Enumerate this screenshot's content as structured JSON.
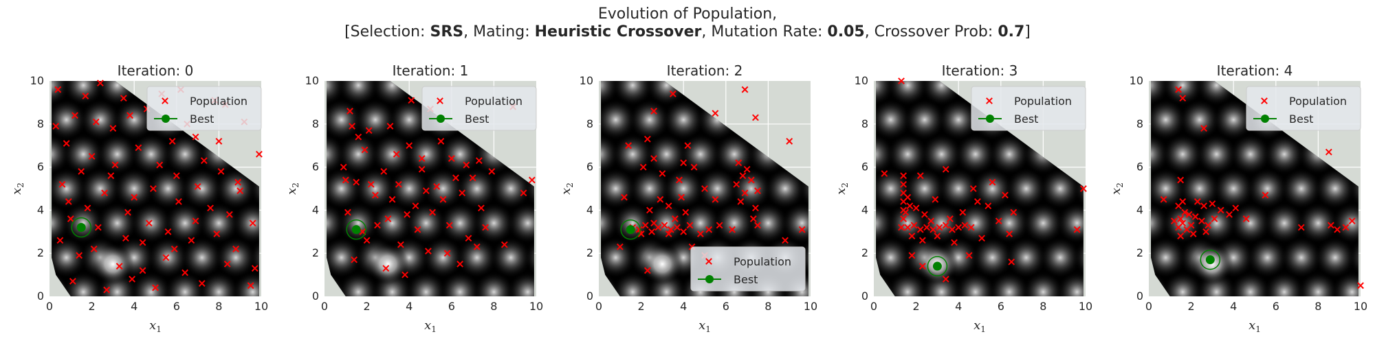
{
  "figure": {
    "title_line1": "Evolution of Population,",
    "title_line2_parts": [
      {
        "text": "[Selection: ",
        "bold": false
      },
      {
        "text": "SRS",
        "bold": true
      },
      {
        "text": ", Mating: ",
        "bold": false
      },
      {
        "text": "Heuristic Crossover",
        "bold": true
      },
      {
        "text": ", Mutation Rate: ",
        "bold": false
      },
      {
        "text": "0.05",
        "bold": true
      },
      {
        "text": ", Crossover Prob: ",
        "bold": false
      },
      {
        "text": "0.7",
        "bold": true
      },
      {
        "text": "]",
        "bold": false
      }
    ]
  },
  "colors": {
    "population": "#ff0000",
    "best": "#008000",
    "outside_region": "#d5dad4",
    "landscape_bg": "#000000"
  },
  "chart_data": [
    {
      "type": "scatter",
      "title": "Iteration:  0",
      "xlabel": "x",
      "xlabel_sub": "1",
      "ylabel": "x",
      "ylabel_sub": "2",
      "xlim": [
        0,
        10
      ],
      "ylim": [
        0,
        10
      ],
      "xticks": [
        "0",
        "2",
        "4",
        "6",
        "8",
        "10"
      ],
      "yticks": [
        "0",
        "2",
        "4",
        "6",
        "8",
        "10"
      ],
      "legend": {
        "position": "upper-center-right",
        "entries": [
          "Population",
          "Best"
        ]
      },
      "population": [
        [
          0.4,
          9.6
        ],
        [
          1.2,
          8.4
        ],
        [
          2.4,
          9.9
        ],
        [
          3.5,
          9.2
        ],
        [
          4.6,
          8.7
        ],
        [
          5.3,
          9.4
        ],
        [
          0.8,
          7.1
        ],
        [
          2.0,
          6.5
        ],
        [
          3.0,
          7.8
        ],
        [
          4.2,
          6.9
        ],
        [
          5.8,
          7.2
        ],
        [
          6.5,
          8.0
        ],
        [
          7.3,
          6.3
        ],
        [
          8.1,
          5.8
        ],
        [
          9.0,
          4.9
        ],
        [
          9.6,
          3.4
        ],
        [
          0.6,
          5.2
        ],
        [
          1.8,
          4.1
        ],
        [
          2.9,
          5.6
        ],
        [
          3.7,
          3.9
        ],
        [
          4.9,
          5.0
        ],
        [
          6.1,
          4.4
        ],
        [
          6.9,
          3.5
        ],
        [
          7.9,
          2.9
        ],
        [
          8.8,
          2.2
        ],
        [
          9.7,
          1.3
        ],
        [
          0.5,
          2.6
        ],
        [
          1.4,
          1.9
        ],
        [
          2.3,
          3.2
        ],
        [
          3.3,
          1.4
        ],
        [
          4.4,
          2.5
        ],
        [
          5.5,
          1.8
        ],
        [
          6.4,
          1.1
        ],
        [
          7.2,
          0.6
        ],
        [
          8.4,
          1.5
        ],
        [
          9.5,
          0.5
        ],
        [
          1.1,
          0.7
        ],
        [
          2.7,
          0.3
        ],
        [
          3.9,
          0.8
        ],
        [
          5.0,
          0.4
        ],
        [
          6.7,
          2.6
        ],
        [
          7.6,
          4.1
        ],
        [
          8.5,
          3.8
        ],
        [
          5.2,
          6.1
        ],
        [
          4.0,
          4.6
        ],
        [
          2.1,
          2.2
        ],
        [
          3.1,
          6.1
        ],
        [
          1.5,
          5.8
        ],
        [
          0.3,
          7.9
        ],
        [
          6.0,
          5.6
        ],
        [
          7.0,
          5.1
        ],
        [
          5.6,
          3.0
        ],
        [
          4.7,
          3.4
        ],
        [
          3.6,
          2.7
        ],
        [
          2.6,
          4.8
        ],
        [
          1.0,
          3.6
        ],
        [
          8.9,
          5.3
        ],
        [
          9.2,
          8.1
        ],
        [
          9.9,
          6.6
        ],
        [
          8.3,
          8.9
        ],
        [
          6.2,
          9.6
        ],
        [
          7.8,
          9.1
        ],
        [
          2.2,
          8.1
        ],
        [
          3.8,
          8.4
        ],
        [
          4.4,
          1.2
        ],
        [
          6.9,
          7.4
        ],
        [
          5.9,
          2.2
        ],
        [
          8.0,
          7.2
        ],
        [
          1.7,
          9.3
        ],
        [
          0.9,
          4.4
        ]
      ],
      "best": [
        1.5,
        3.2
      ]
    },
    {
      "type": "scatter",
      "title": "Iteration:  1",
      "xlabel": "x",
      "xlabel_sub": "1",
      "ylabel": "x",
      "ylabel_sub": "2",
      "xlim": [
        0,
        10
      ],
      "ylim": [
        0,
        10
      ],
      "xticks": [
        "0",
        "2",
        "4",
        "6",
        "8",
        "10"
      ],
      "yticks": [
        "0",
        "2",
        "4",
        "6",
        "8",
        "10"
      ],
      "legend": {
        "position": "upper-center-right",
        "entries": [
          "Population",
          "Best"
        ]
      },
      "population": [
        [
          1.3,
          7.9
        ],
        [
          1.6,
          7.4
        ],
        [
          1.9,
          6.8
        ],
        [
          1.2,
          8.6
        ],
        [
          2.1,
          7.7
        ],
        [
          0.9,
          6.0
        ],
        [
          1.5,
          5.3
        ],
        [
          2.8,
          5.8
        ],
        [
          3.4,
          6.6
        ],
        [
          4.0,
          7.0
        ],
        [
          4.6,
          5.9
        ],
        [
          3.2,
          4.5
        ],
        [
          3.9,
          3.8
        ],
        [
          4.4,
          3.1
        ],
        [
          5.1,
          3.9
        ],
        [
          5.6,
          4.5
        ],
        [
          6.2,
          5.5
        ],
        [
          6.7,
          6.1
        ],
        [
          7.3,
          6.3
        ],
        [
          7.9,
          5.8
        ],
        [
          6.5,
          4.8
        ],
        [
          5.9,
          3.3
        ],
        [
          6.8,
          2.7
        ],
        [
          7.4,
          4.1
        ],
        [
          4.9,
          2.1
        ],
        [
          3.6,
          2.4
        ],
        [
          2.5,
          3.3
        ],
        [
          2.0,
          2.6
        ],
        [
          1.4,
          1.7
        ],
        [
          2.9,
          1.3
        ],
        [
          3.8,
          1.0
        ],
        [
          4.3,
          4.2
        ],
        [
          5.3,
          5.1
        ],
        [
          6.0,
          6.4
        ],
        [
          7.0,
          5.5
        ],
        [
          7.6,
          3.2
        ],
        [
          8.5,
          2.4
        ],
        [
          9.8,
          5.4
        ],
        [
          9.4,
          4.8
        ],
        [
          4.1,
          9.1
        ],
        [
          5.0,
          8.7
        ],
        [
          5.5,
          7.2
        ],
        [
          8.9,
          8.8
        ],
        [
          3.0,
          3.6
        ],
        [
          2.4,
          4.7
        ],
        [
          1.1,
          3.9
        ],
        [
          1.8,
          3.0
        ],
        [
          2.2,
          5.2
        ],
        [
          3.5,
          5.2
        ],
        [
          4.8,
          4.9
        ],
        [
          5.8,
          2.0
        ],
        [
          6.4,
          1.5
        ],
        [
          7.2,
          2.3
        ],
        [
          4.6,
          6.4
        ],
        [
          3.1,
          7.9
        ],
        [
          1.0,
          5.4
        ]
      ],
      "best": [
        1.5,
        3.1
      ]
    },
    {
      "type": "scatter",
      "title": "Iteration:  2",
      "xlabel": "x",
      "xlabel_sub": "1",
      "ylabel": "x",
      "ylabel_sub": "2",
      "xlim": [
        0,
        10
      ],
      "ylim": [
        0,
        10
      ],
      "xticks": [
        "0",
        "2",
        "4",
        "6",
        "8",
        "10"
      ],
      "yticks": [
        "0",
        "2",
        "4",
        "6",
        "8",
        "10"
      ],
      "legend": {
        "position": "lower-right",
        "entries": [
          "Population",
          "Best"
        ]
      },
      "population": [
        [
          1.6,
          3.2
        ],
        [
          1.9,
          3.1
        ],
        [
          2.2,
          3.3
        ],
        [
          2.5,
          3.0
        ],
        [
          2.8,
          3.2
        ],
        [
          3.1,
          3.3
        ],
        [
          3.4,
          3.1
        ],
        [
          3.7,
          3.2
        ],
        [
          4.0,
          3.0
        ],
        [
          4.3,
          3.3
        ],
        [
          2.0,
          2.9
        ],
        [
          2.6,
          3.4
        ],
        [
          3.3,
          2.9
        ],
        [
          3.6,
          3.6
        ],
        [
          4.1,
          3.9
        ],
        [
          3.9,
          4.6
        ],
        [
          3.8,
          5.4
        ],
        [
          4.0,
          6.2
        ],
        [
          4.2,
          7.0
        ],
        [
          3.3,
          4.2
        ],
        [
          2.9,
          4.5
        ],
        [
          2.4,
          4.0
        ],
        [
          6.5,
          5.2
        ],
        [
          6.8,
          5.6
        ],
        [
          7.0,
          5.9
        ],
        [
          6.6,
          6.2
        ],
        [
          7.2,
          5.4
        ],
        [
          6.9,
          4.8
        ],
        [
          6.7,
          4.4
        ],
        [
          7.4,
          4.1
        ],
        [
          7.3,
          3.6
        ],
        [
          6.3,
          3.1
        ],
        [
          5.7,
          3.3
        ],
        [
          5.2,
          3.1
        ],
        [
          4.8,
          2.9
        ],
        [
          5.5,
          4.5
        ],
        [
          5.0,
          5.0
        ],
        [
          4.5,
          6.0
        ],
        [
          3.0,
          5.7
        ],
        [
          2.6,
          6.4
        ],
        [
          2.1,
          6.0
        ],
        [
          1.4,
          7.0
        ],
        [
          2.3,
          7.3
        ],
        [
          3.5,
          9.4
        ],
        [
          2.6,
          8.6
        ],
        [
          5.5,
          8.5
        ],
        [
          6.9,
          9.6
        ],
        [
          7.4,
          8.3
        ],
        [
          9.0,
          7.2
        ],
        [
          8.8,
          2.6
        ],
        [
          9.6,
          3.1
        ],
        [
          5.0,
          1.9
        ],
        [
          4.4,
          2.3
        ],
        [
          2.3,
          1.2
        ],
        [
          1.2,
          4.6
        ],
        [
          1.0,
          2.3
        ],
        [
          7.5,
          3.3
        ],
        [
          7.5,
          4.9
        ]
      ],
      "best": [
        1.5,
        3.1
      ]
    },
    {
      "type": "scatter",
      "title": "Iteration:  3",
      "xlabel": "x",
      "xlabel_sub": "1",
      "ylabel": "x",
      "ylabel_sub": "2",
      "xlim": [
        0,
        10
      ],
      "ylim": [
        0,
        10
      ],
      "xticks": [
        "0",
        "2",
        "4",
        "6",
        "8",
        "10"
      ],
      "yticks": [
        "0",
        "2",
        "4",
        "6",
        "8",
        "10"
      ],
      "legend": {
        "position": "upper-center-right",
        "entries": [
          "Population",
          "Best"
        ]
      },
      "population": [
        [
          1.3,
          3.2
        ],
        [
          1.6,
          3.2
        ],
        [
          1.9,
          3.3
        ],
        [
          2.2,
          3.1
        ],
        [
          2.5,
          3.2
        ],
        [
          2.8,
          3.1
        ],
        [
          3.1,
          3.2
        ],
        [
          3.4,
          3.3
        ],
        [
          3.7,
          3.1
        ],
        [
          4.0,
          3.2
        ],
        [
          4.3,
          3.3
        ],
        [
          4.6,
          3.2
        ],
        [
          1.4,
          3.6
        ],
        [
          1.4,
          4.0
        ],
        [
          1.4,
          4.4
        ],
        [
          1.4,
          4.8
        ],
        [
          1.4,
          5.2
        ],
        [
          1.4,
          5.6
        ],
        [
          1.5,
          3.9
        ],
        [
          1.7,
          4.2
        ],
        [
          2.0,
          4.1
        ],
        [
          2.4,
          3.8
        ],
        [
          2.7,
          3.5
        ],
        [
          1.8,
          2.8
        ],
        [
          2.3,
          2.6
        ],
        [
          3.0,
          2.8
        ],
        [
          3.6,
          3.6
        ],
        [
          4.2,
          3.9
        ],
        [
          4.9,
          4.4
        ],
        [
          5.4,
          4.2
        ],
        [
          5.9,
          3.5
        ],
        [
          6.4,
          2.9
        ],
        [
          6.6,
          3.9
        ],
        [
          5.6,
          5.3
        ],
        [
          4.7,
          5.0
        ],
        [
          3.4,
          5.9
        ],
        [
          2.9,
          4.5
        ],
        [
          2.2,
          5.6
        ],
        [
          1.6,
          4.6
        ],
        [
          1.8,
          1.9
        ],
        [
          2.3,
          1.4
        ],
        [
          6.5,
          1.6
        ],
        [
          9.6,
          3.1
        ],
        [
          9.9,
          5.0
        ],
        [
          0.5,
          5.7
        ],
        [
          1.3,
          10.0
        ],
        [
          6.2,
          4.7
        ],
        [
          5.1,
          2.7
        ],
        [
          3.8,
          2.5
        ],
        [
          4.5,
          1.9
        ],
        [
          3.4,
          0.8
        ]
      ],
      "best": [
        3.0,
        1.4
      ]
    },
    {
      "type": "scatter",
      "title": "Iteration:  4",
      "xlabel": "x",
      "xlabel_sub": "1",
      "ylabel": "x",
      "ylabel_sub": "2",
      "xlim": [
        0,
        10
      ],
      "ylim": [
        0,
        10
      ],
      "xticks": [
        "0",
        "2",
        "4",
        "6",
        "8",
        "10"
      ],
      "yticks": [
        "0",
        "2",
        "4",
        "6",
        "8",
        "10"
      ],
      "legend": {
        "position": "upper-center-right",
        "entries": [
          "Population",
          "Best"
        ]
      },
      "population": [
        [
          1.4,
          3.2
        ],
        [
          1.6,
          3.4
        ],
        [
          1.8,
          3.1
        ],
        [
          1.5,
          3.6
        ],
        [
          1.7,
          3.9
        ],
        [
          1.4,
          4.2
        ],
        [
          1.6,
          4.4
        ],
        [
          2.0,
          3.3
        ],
        [
          2.2,
          3.7
        ],
        [
          2.5,
          3.5
        ],
        [
          2.8,
          3.3
        ],
        [
          3.1,
          3.6
        ],
        [
          3.4,
          4.0
        ],
        [
          3.0,
          4.3
        ],
        [
          2.6,
          4.2
        ],
        [
          2.3,
          4.4
        ],
        [
          1.9,
          3.8
        ],
        [
          2.1,
          2.9
        ],
        [
          1.5,
          2.8
        ],
        [
          3.8,
          3.8
        ],
        [
          4.1,
          4.1
        ],
        [
          4.6,
          3.6
        ],
        [
          5.5,
          4.7
        ],
        [
          1.5,
          5.4
        ],
        [
          1.4,
          9.6
        ],
        [
          1.6,
          9.2
        ],
        [
          2.6,
          7.8
        ],
        [
          8.5,
          6.7
        ],
        [
          0.7,
          4.5
        ],
        [
          7.2,
          3.2
        ],
        [
          8.6,
          3.3
        ],
        [
          9.3,
          3.2
        ],
        [
          9.6,
          3.5
        ],
        [
          8.9,
          3.1
        ],
        [
          10.0,
          0.5
        ],
        [
          1.2,
          3.5
        ],
        [
          2.7,
          3.0
        ]
      ],
      "best": [
        2.9,
        1.7
      ]
    }
  ]
}
